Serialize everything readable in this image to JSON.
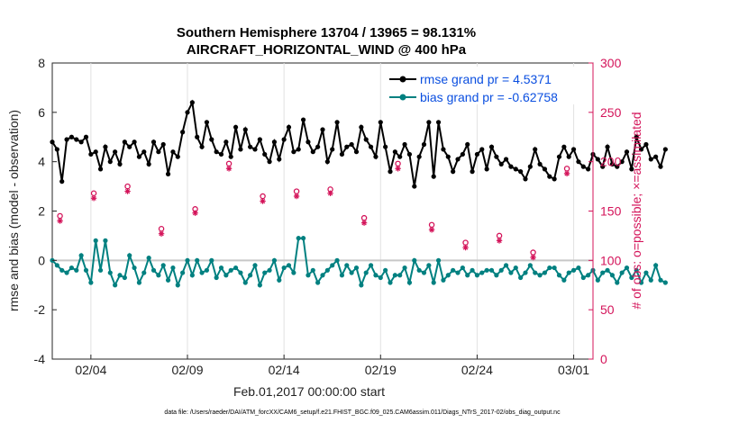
{
  "chart_data": {
    "type": "line",
    "title": "Southern Hemisphere 13704 / 13965 = 98.131%",
    "subtitle": "AIRCRAFT_HORIZONTAL_WIND @ 400 hPa",
    "xlabel": "Feb.01,2017 00:00:00 start",
    "ylabel": "rmse and bias (model - observation)",
    "ylabel_right": "# of obs: o=possible; ×=assimilated",
    "xlim": [
      1,
      29
    ],
    "ylim": [
      -4,
      8
    ],
    "ylim_right": [
      0,
      300
    ],
    "x_ticks": [
      3,
      8,
      13,
      18,
      23,
      28
    ],
    "x_tick_labels": [
      "02/04",
      "02/09",
      "02/14",
      "02/19",
      "02/24",
      "03/01"
    ],
    "y_ticks": [
      -4,
      -2,
      0,
      2,
      4,
      6,
      8
    ],
    "y_ticks_right": [
      0,
      50,
      100,
      150,
      200,
      250,
      300
    ],
    "footnote": "data file: /Users/raeder/DAI/ATM_forcXX/CAM6_setup/f.e21.FHIST_BGC.f09_025.CAM6assim.011/Diags_NTrS_2017-02/obs_diag_output.nc",
    "x_start": 1.0,
    "x_step": 0.25,
    "series": [
      {
        "name": "rmse grand pr = 4.5371",
        "color": "#000000",
        "axis": "left",
        "marker": "filled-circle",
        "values": [
          4.8,
          4.5,
          3.2,
          4.9,
          5.0,
          4.9,
          4.8,
          5.0,
          4.3,
          4.4,
          3.7,
          4.6,
          4.0,
          4.4,
          3.9,
          4.8,
          4.6,
          4.8,
          4.2,
          4.4,
          3.9,
          4.8,
          4.4,
          4.7,
          3.5,
          4.4,
          4.2,
          5.2,
          6.0,
          6.4,
          5.0,
          4.6,
          5.6,
          4.9,
          4.4,
          4.3,
          4.8,
          4.2,
          5.4,
          4.5,
          5.3,
          4.6,
          4.5,
          4.9,
          4.3,
          4.0,
          4.8,
          4.1,
          4.9,
          5.4,
          4.4,
          4.5,
          5.7,
          4.8,
          4.4,
          4.6,
          5.3,
          4.0,
          4.5,
          5.6,
          4.3,
          4.6,
          4.7,
          4.4,
          5.4,
          4.9,
          4.6,
          4.2,
          5.6,
          4.6,
          3.6,
          4.4,
          4.2,
          4.7,
          4.3,
          3.0,
          4.2,
          4.7,
          5.6,
          3.4,
          5.6,
          4.5,
          4.2,
          3.6,
          4.1,
          4.3,
          4.7,
          3.6,
          4.3,
          4.5,
          3.7,
          4.6,
          4.2,
          3.9,
          4.1,
          3.8,
          3.7,
          3.6,
          3.3,
          3.8,
          4.5,
          3.9,
          3.7,
          3.4,
          3.3,
          4.2,
          4.6,
          4.2,
          4.5,
          4.0,
          3.8,
          3.7,
          4.3,
          4.1,
          3.8,
          4.6,
          3.9,
          3.8,
          4.0,
          4.4,
          3.7,
          5.0,
          4.5,
          4.7,
          4.1,
          4.2,
          3.8,
          4.5
        ]
      },
      {
        "name": "bias grand pr = -0.62758",
        "color": "#008080",
        "axis": "left",
        "marker": "filled-circle",
        "values": [
          0.0,
          -0.2,
          -0.4,
          -0.5,
          -0.3,
          -0.4,
          0.2,
          -0.4,
          -0.9,
          0.8,
          -0.4,
          0.8,
          -0.5,
          -1.0,
          -0.6,
          -0.7,
          0.2,
          -0.3,
          -0.9,
          -0.5,
          0.1,
          -0.4,
          -0.6,
          -0.2,
          -0.8,
          -0.3,
          -1.0,
          -0.5,
          0.0,
          -0.6,
          0.0,
          -0.5,
          -0.4,
          0.0,
          -0.7,
          -0.3,
          -0.6,
          -0.4,
          -0.3,
          -0.5,
          -0.9,
          -0.6,
          -0.2,
          -1.0,
          -0.5,
          -0.4,
          0.0,
          -0.8,
          -0.3,
          -0.2,
          -0.5,
          0.9,
          0.9,
          -0.6,
          -0.4,
          -0.9,
          -0.6,
          -0.4,
          -0.2,
          0.0,
          -0.6,
          -0.2,
          -0.5,
          -0.3,
          -1.0,
          -0.5,
          -0.2,
          -0.6,
          -0.7,
          -0.4,
          -0.9,
          -0.6,
          -0.6,
          -0.3,
          -0.9,
          0.0,
          -0.4,
          -0.5,
          -0.2,
          -0.9,
          0.0,
          -0.8,
          -0.6,
          -0.4,
          -0.5,
          -0.3,
          -0.6,
          -0.4,
          -0.6,
          -0.5,
          -0.4,
          -0.4,
          -0.6,
          -0.4,
          -0.2,
          -0.5,
          -0.3,
          -0.7,
          -0.5,
          -0.2,
          -0.5,
          -0.6,
          -0.5,
          -0.3,
          -0.3,
          -0.6,
          -0.8,
          -0.5,
          -0.4,
          -0.3,
          -0.7,
          -0.6,
          -0.4,
          -0.8,
          -0.5,
          -0.4,
          -0.6,
          -0.9,
          -0.5,
          -0.3,
          -0.7,
          -0.4,
          -0.9,
          -0.5,
          -0.8,
          -0.2,
          -0.8,
          -0.9
        ]
      },
      {
        "name": "possible obs",
        "color": "#d4145a",
        "axis": "right",
        "marker": "open-circle",
        "values": [
          145,
          168,
          175,
          132,
          152,
          198,
          165,
          170,
          172,
          143,
          198,
          136,
          118,
          125,
          108,
          193
        ]
      },
      {
        "name": "assimilated obs",
        "color": "#d4145a",
        "axis": "right",
        "marker": "asterisk",
        "values": [
          140,
          163,
          170,
          127,
          148,
          193,
          160,
          165,
          168,
          138,
          193,
          131,
          113,
          120,
          103,
          188
        ]
      }
    ]
  },
  "legend": {
    "rmse_label": "rmse grand pr = 4.5371",
    "bias_label": "bias grand pr = -0.62758"
  }
}
